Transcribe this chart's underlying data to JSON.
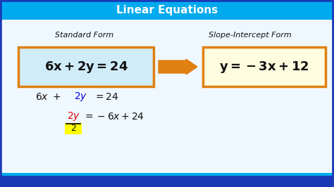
{
  "title": "Linear Equations",
  "title_bg": "#00aaee",
  "title_text_color": "#ffffff",
  "bg_color": "#e8f4f8",
  "content_bg": "#f0f8ff",
  "border_color": "#1a3ab5",
  "left_label": "Standard Form",
  "right_label": "Slope-Intercept Form",
  "left_box_bg": "#d0ecf8",
  "right_box_bg": "#fffde0",
  "box_border": "#e08010",
  "arrow_color": "#e08010",
  "bottom_bar_color": "#1a3ab5",
  "red_color": "#dd0000",
  "blue_color": "#0000dd",
  "dark_color": "#111111",
  "yellow_color": "#ffff00",
  "title_fontsize": 11,
  "label_fontsize": 8,
  "eq_fontsize": 11,
  "step_fontsize": 10
}
